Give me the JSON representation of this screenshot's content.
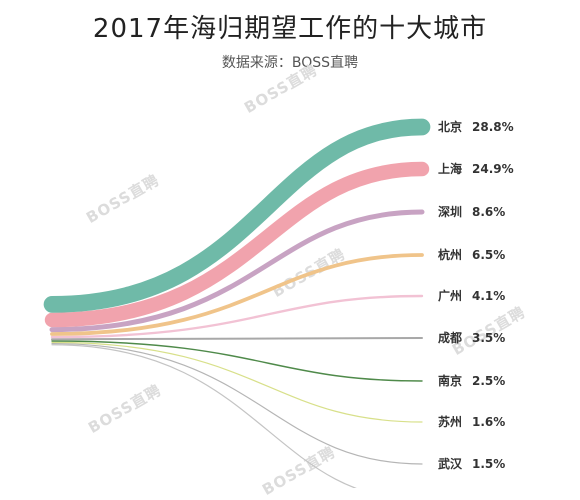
{
  "title": "2017年海归期望工作的十大城市",
  "subtitle": "数据来源：BOSS直聘",
  "watermark": "BOSS直聘",
  "chart_data": {
    "type": "sankey",
    "title": "2017年海归期望工作的十大城市",
    "subtitle": "数据来源：BOSS直聘",
    "unit": "%",
    "series": [
      {
        "name": "北京",
        "value": 28.8,
        "label": "28.8%",
        "color": "#6fbaa8"
      },
      {
        "name": "上海",
        "value": 24.9,
        "label": "24.9%",
        "color": "#f1a3ad"
      },
      {
        "name": "深圳",
        "value": 8.6,
        "label": "8.6%",
        "color": "#c8a3c3"
      },
      {
        "name": "杭州",
        "value": 6.5,
        "label": "6.5%",
        "color": "#f0c48a"
      },
      {
        "name": "广州",
        "value": 4.1,
        "label": "4.1%",
        "color": "#f2c2d4"
      },
      {
        "name": "成都",
        "value": 3.5,
        "label": "3.5%",
        "color": "#a8a8a8"
      },
      {
        "name": "南京",
        "value": 2.5,
        "label": "2.5%",
        "color": "#4f8a4a"
      },
      {
        "name": "苏州",
        "value": 1.6,
        "label": "1.6%",
        "color": "#d8e08a"
      },
      {
        "name": "武汉",
        "value": 1.5,
        "label": "1.5%",
        "color": "#b5b5b5"
      },
      {
        "name": "",
        "value": 1.2,
        "label": "",
        "color": "#c4c4c4"
      }
    ]
  }
}
